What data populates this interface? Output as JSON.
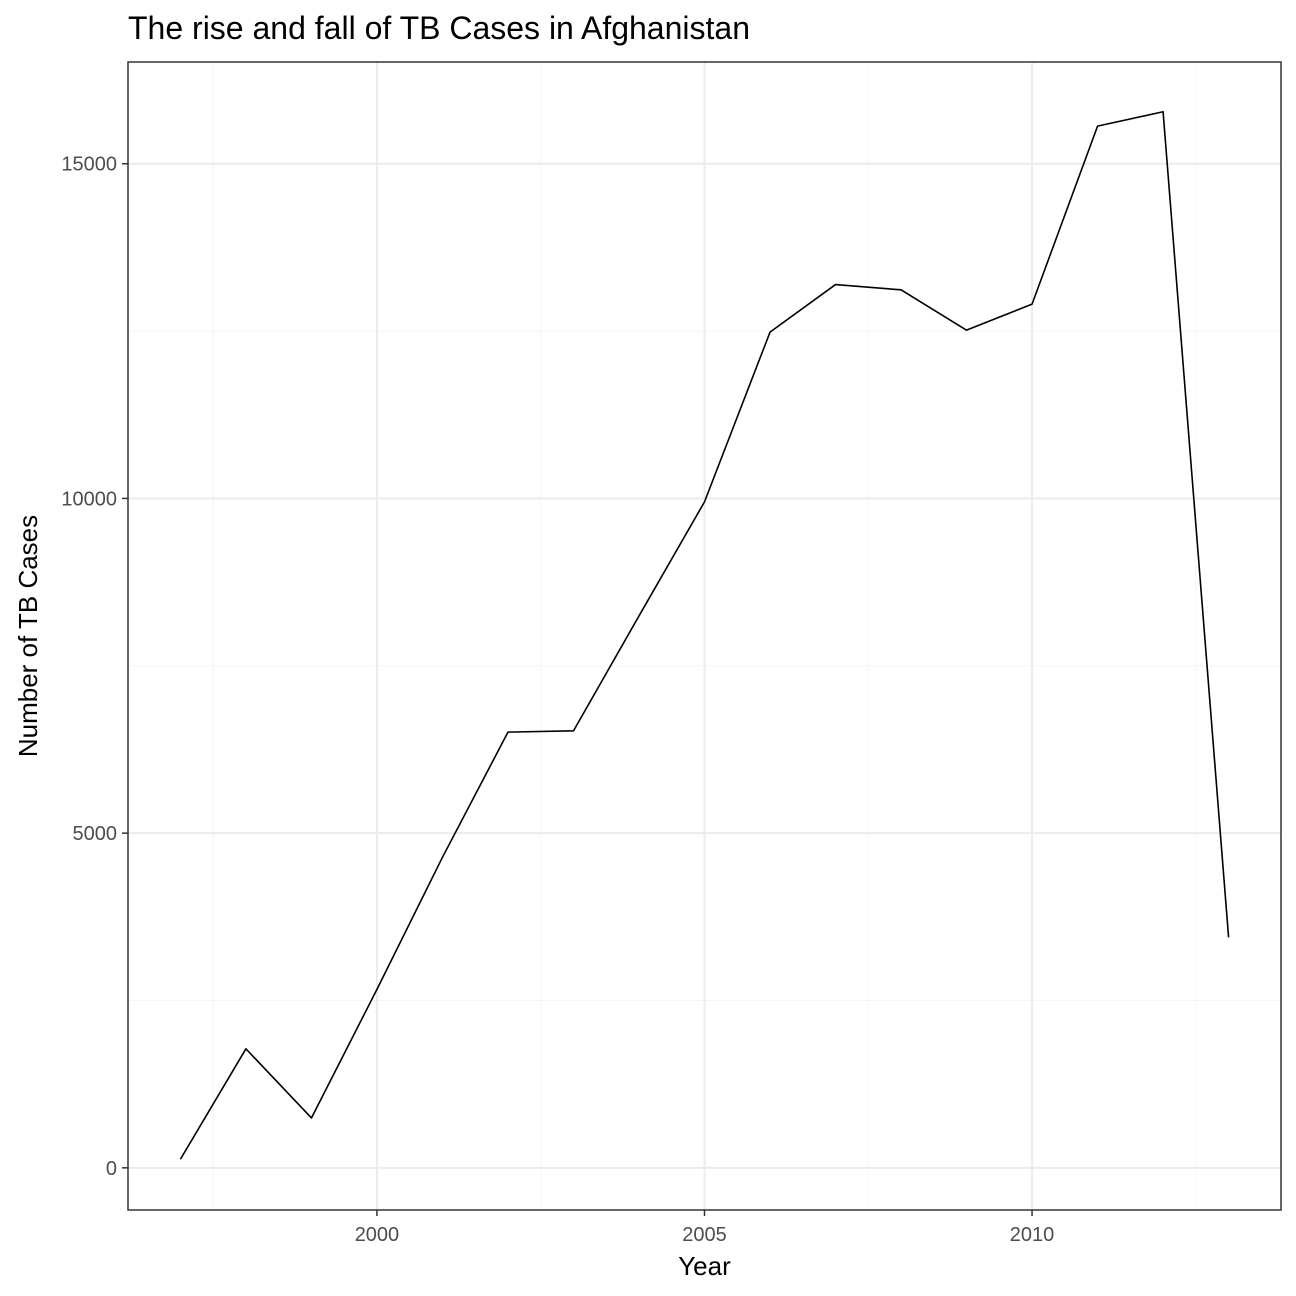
{
  "chart_data": {
    "type": "line",
    "title": "The rise and fall of TB Cases in Afghanistan",
    "xlabel": "Year",
    "ylabel": "Number of TB Cases",
    "x": [
      1997,
      1998,
      1999,
      2000,
      2001,
      2002,
      2003,
      2004,
      2005,
      2006,
      2007,
      2008,
      2009,
      2010,
      2011,
      2012,
      2013
    ],
    "series": [
      {
        "values": [
          128,
          1778,
          745,
          2666,
          4639,
          6509,
          6528,
          8245,
          9949,
          12484,
          13195,
          13116,
          12514,
          12903,
          15562,
          15777,
          3444
        ]
      }
    ],
    "xlim": [
      1996.2,
      2013.8
    ],
    "ylim": [
      -630,
      16520
    ],
    "x_ticks": [
      2000,
      2005,
      2010
    ],
    "x_tick_labels": [
      "2000",
      "2005",
      "2010"
    ],
    "y_ticks": [
      0,
      5000,
      10000,
      15000
    ],
    "y_tick_labels": [
      "0",
      "5000",
      "10000",
      "15000"
    ],
    "x_minor_ticks": [
      1997.5,
      2002.5,
      2007.5,
      2012.5
    ],
    "y_minor_ticks": [
      2500,
      7500,
      12500
    ],
    "grid": true,
    "legend": "none",
    "colors": {
      "line": "#000000",
      "grid_major": "#ebebeb",
      "grid_minor": "#f5f5f5",
      "panel_border": "#333333",
      "tick_text": "#4d4d4d"
    }
  }
}
